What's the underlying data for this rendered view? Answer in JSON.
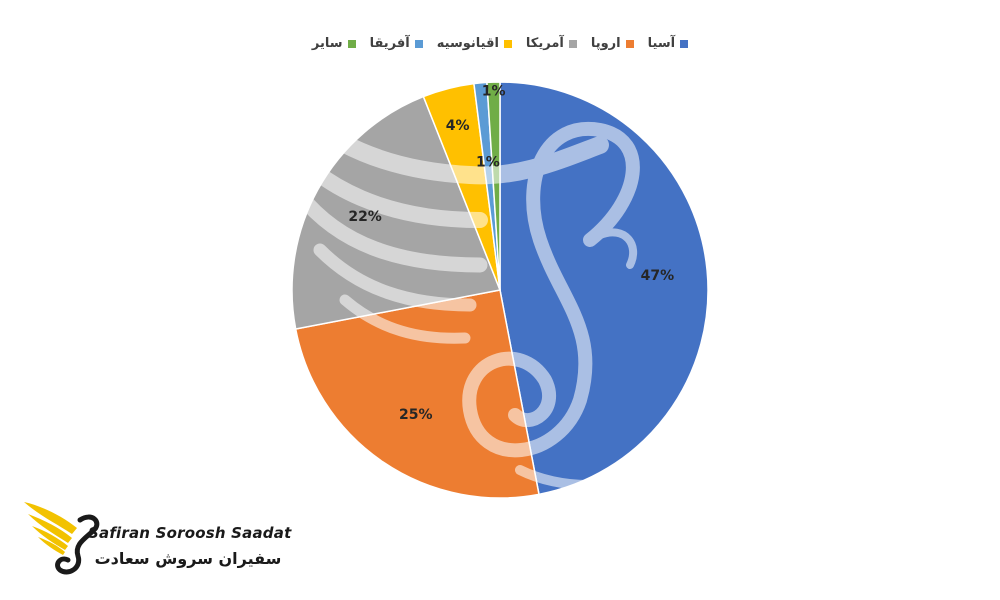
{
  "chart_data": {
    "type": "pie",
    "title": "",
    "legend_position": "top",
    "slices": [
      {
        "label": "آسیا",
        "value": 47,
        "value_label": "47%",
        "color": "#4472C4"
      },
      {
        "label": "اروپا",
        "value": 25,
        "value_label": "25%",
        "color": "#ED7D31"
      },
      {
        "label": "آمریکا",
        "value": 22,
        "value_label": "22%",
        "color": "#A5A5A5"
      },
      {
        "label": "اقیانوسیه",
        "value": 4,
        "value_label": "4%",
        "color": "#FFC000"
      },
      {
        "label": "آفریقا",
        "value": 1,
        "value_label": "1%",
        "color": "#5B9BD5"
      },
      {
        "label": "سایر",
        "value": 1,
        "value_label": "1%",
        "color": "#70AD47"
      }
    ]
  },
  "watermark": {
    "name": "swan-wing-watermark"
  },
  "logo": {
    "text_en": "Safiran Soroosh Saadat",
    "text_fa": "سفیران سروش سعادت",
    "icon": "swan-wing-logo-icon",
    "colors": {
      "wing": "#F2C200",
      "body": "#1a1a1a"
    }
  }
}
